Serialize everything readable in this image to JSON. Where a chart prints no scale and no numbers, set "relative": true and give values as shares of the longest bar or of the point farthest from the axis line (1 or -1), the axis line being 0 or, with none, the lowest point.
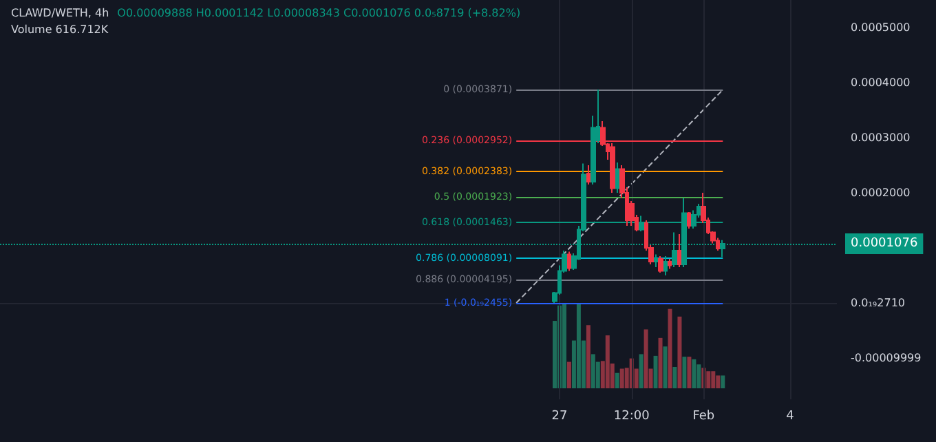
{
  "chart_data": [
    {
      "type": "candlestick",
      "title": "CLAWD/WETH, 4h",
      "subtitle": "O0.00009888 H0.0001142 L0.00008343 C0.0001076 0.0₅8719 (+8.82%)",
      "xlim": [
        "--01-07T14:00",
        "--02-05T15:00"
      ],
      "xticks": [
        {
          "value": "--01-27T00:00",
          "label": "27"
        },
        {
          "value": "--01-29T12:00",
          "label": "12:00"
        },
        {
          "value": "--02-01T00:00",
          "label": "Feb"
        },
        {
          "value": "--02-04T00:00",
          "label": "4"
        }
      ],
      "ylim": [
        -0.000175,
        0.00055
      ],
      "yticks": [
        {
          "value": -9.999e-05,
          "label": "-0.00009999"
        },
        {
          "value": 2.71e-23,
          "label": "0.0₁₉2710"
        },
        {
          "value": 0.0002,
          "label": "0.0002000"
        },
        {
          "value": 0.0003,
          "label": "0.0003000"
        },
        {
          "value": 0.0004,
          "label": "0.0004000"
        },
        {
          "value": 0.0005,
          "label": "0.0005000"
        }
      ],
      "grid": true,
      "series": [
        {
          "colors": [
            "#089981",
            "#089981",
            "#089981",
            "#f23645",
            "#089981",
            "#089981",
            "#089981",
            "#f23645",
            "#089981",
            "#089981",
            "#f23645",
            "#f23645",
            "#f23645",
            "#089981",
            "#f23645",
            "#f23645",
            "#f23645",
            "#f23645",
            "#089981",
            "#f23645",
            "#f23645",
            "#089981",
            "#f23645",
            "#089981",
            "#f23645",
            "#089981",
            "#f23645",
            "#089981",
            "#f23645",
            "#089981",
            "#089981",
            "#f23645",
            "#f23645",
            "#f23645",
            "#f23645",
            "#089981"
          ],
          "x": [
            "--01-26T20:00",
            "--01-27T00:00",
            "--01-27T04:00",
            "--01-27T08:00",
            "--01-27T12:00",
            "--01-27T16:00",
            "--01-27T20:00",
            "--01-28T00:00",
            "--01-28T04:00",
            "--01-28T08:00",
            "--01-28T12:00",
            "--01-28T16:00",
            "--01-28T20:00",
            "--01-29T00:00",
            "--01-29T04:00",
            "--01-29T08:00",
            "--01-29T12:00",
            "--01-29T16:00",
            "--01-29T20:00",
            "--01-30T00:00",
            "--01-30T04:00",
            "--01-30T08:00",
            "--01-30T12:00",
            "--01-30T16:00",
            "--01-30T20:00",
            "--01-31T00:00",
            "--01-31T04:00",
            "--01-31T08:00",
            "--01-31T12:00",
            "--01-31T16:00",
            "--01-31T20:00",
            "--02-01T00:00",
            "--02-01T04:00",
            "--02-01T08:00",
            "--02-01T12:00",
            "--02-01T16:00"
          ],
          "ohlc": [
            [
              3e-06,
              2e-05,
              0,
              1.8e-05
            ],
            [
              1.8e-05,
              6.8e-05,
              1.5e-05,
              5.8e-05
            ],
            [
              5.8e-05,
              9.5e-05,
              5.5e-05,
              8.8e-05
            ],
            [
              8.8e-05,
              9.3e-05,
              5.8e-05,
              6.3e-05
            ],
            [
              6.3e-05,
              9e-05,
              6e-05,
              8.5e-05
            ],
            [
              8e-05,
              0.00014,
              7.8e-05,
              0.000133
            ],
            [
              0.000133,
              0.000253,
              0.00013,
              0.000233
            ],
            [
              0.000235,
              0.00025,
              0.000215,
              0.00022
            ],
            [
              0.00022,
              0.00034,
              0.000215,
              0.000318
            ],
            [
              0.000295,
              0.0003871,
              0.00029,
              0.00032
            ],
            [
              0.000318,
              0.00033,
              0.000285,
              0.000288
            ],
            [
              0.000288,
              0.00029,
              0.00026,
              0.000275
            ],
            [
              0.000283,
              0.00029,
              0.0002,
              0.000208
            ],
            [
              0.000208,
              0.000255,
              0.0002,
              0.000243
            ],
            [
              0.000243,
              0.00025,
              0.00019,
              0.0002
            ],
            [
              0.0002,
              0.00021,
              0.00014,
              0.00015
            ],
            [
              0.00018,
              0.000185,
              0.00014,
              0.00015
            ],
            [
              0.000155,
              0.00016,
              0.00013,
              0.000133
            ],
            [
              0.000133,
              0.000158,
              0.00013,
              0.000145
            ],
            [
              0.000145,
              0.00015,
              9.5e-05,
              0.0001
            ],
            [
              0.0001,
              0.000105,
              7e-05,
              7.5e-05
            ],
            [
              7.5e-05,
              8.8e-05,
              6.5e-05,
              8e-05
            ],
            [
              8e-05,
              8.5e-05,
              5.5e-05,
              5.8e-05
            ],
            [
              5.8e-05,
              8.5e-05,
              5e-05,
              7.5e-05
            ],
            [
              7.5e-05,
              8e-05,
              6.2e-05,
              6.8e-05
            ],
            [
              7e-05,
              0.000128,
              6.5e-05,
              9.5e-05
            ],
            [
              9.5e-05,
              0.000125,
              6.5e-05,
              7e-05
            ],
            [
              7e-05,
              0.00019,
              6.5e-05,
              0.000163
            ],
            [
              0.000163,
              0.000165,
              0.000135,
              0.00014
            ],
            [
              0.00014,
              0.000168,
              0.000135,
              0.00016
            ],
            [
              0.00016,
              0.00018,
              0.000155,
              0.000175
            ],
            [
              0.000175,
              0.0002,
              0.000145,
              0.00015
            ],
            [
              0.00015,
              0.000155,
              0.000125,
              0.000128
            ],
            [
              0.000128,
              0.00013,
              0.000108,
              0.000113
            ],
            [
              0.000113,
              0.000118,
              9.5e-05,
              9.888e-05
            ],
            [
              9.888e-05,
              0.0001142,
              8.343e-05,
              0.0001076
            ]
          ]
        },
        {
          "type": "line",
          "x": [
            "--01-25T12:00",
            "--02-01T16:00"
          ],
          "values": [
            0,
            0.000387
          ],
          "color": "#b2b5be",
          "line_style": "dashed"
        }
      ],
      "ref_lines": [
        {
          "axis": "y",
          "value": 0.0003871,
          "label": "0 (0.0003871)",
          "color": "#787b86"
        },
        {
          "axis": "y",
          "value": 0.0002952,
          "label": "0.236 (0.0002952)",
          "color": "#f23645"
        },
        {
          "axis": "y",
          "value": 0.0002383,
          "label": "0.382 (0.0002383)",
          "color": "#ff9800"
        },
        {
          "axis": "y",
          "value": 0.0001923,
          "label": "0.5 (0.0001923)",
          "color": "#4caf50"
        },
        {
          "axis": "y",
          "value": 0.0001463,
          "label": "0.618 (0.0001463)",
          "color": "#089981"
        },
        {
          "axis": "y",
          "value": 8.091e-05,
          "label": "0.786 (0.00008091)",
          "color": "#00bcd4"
        },
        {
          "axis": "y",
          "value": 4.195e-05,
          "label": "0.886 (0.00004195)",
          "color": "#787b86"
        },
        {
          "axis": "y",
          "value": -2.455e-23,
          "label": "1 (-0.0₁₉2455)",
          "color": "#2962ff"
        },
        {
          "axis": "y",
          "value": 0.0001076,
          "label": "0.0001076",
          "color": "#089981",
          "line_style": "dotted"
        }
      ]
    },
    {
      "type": "bar",
      "relative": true,
      "tick_labels": false,
      "annotations": [
        "Volume 616.712K"
      ],
      "categories": [
        null,
        null,
        null,
        null,
        null,
        null,
        null,
        null,
        null,
        null,
        null,
        null,
        null,
        null,
        null,
        null,
        null,
        null,
        null,
        null,
        null,
        null,
        null,
        null,
        null,
        null,
        null,
        null,
        null,
        null,
        null,
        null,
        null,
        null,
        null,
        null
      ],
      "values": [
        0.79,
        0.97,
        1,
        0.31,
        0.56,
        1,
        0.56,
        0.74,
        0.4,
        0.31,
        0.32,
        0.62,
        0.29,
        0.18,
        0.23,
        0.24,
        0.35,
        0.23,
        0.4,
        0.69,
        0.23,
        0.38,
        0.59,
        0.49,
        0.93,
        0.25,
        0.84,
        0.37,
        0.37,
        0.34,
        0.28,
        0.24,
        0.2,
        0.2,
        0.15,
        0.15
      ],
      "colors": [
        "#1e6e5a",
        "#1e6e5a",
        "#1e6e5a",
        "#8c3340",
        "#1e6e5a",
        "#1e6e5a",
        "#1e6e5a",
        "#8c3340",
        "#1e6e5a",
        "#1e6e5a",
        "#8c3340",
        "#8c3340",
        "#8c3340",
        "#1e6e5a",
        "#8c3340",
        "#8c3340",
        "#8c3340",
        "#8c3340",
        "#1e6e5a",
        "#8c3340",
        "#8c3340",
        "#1e6e5a",
        "#8c3340",
        "#1e6e5a",
        "#8c3340",
        "#1e6e5a",
        "#8c3340",
        "#1e6e5a",
        "#8c3340",
        "#1e6e5a",
        "#1e6e5a",
        "#8c3340",
        "#8c3340",
        "#8c3340",
        "#8c3340",
        "#1e6e5a"
      ]
    }
  ]
}
